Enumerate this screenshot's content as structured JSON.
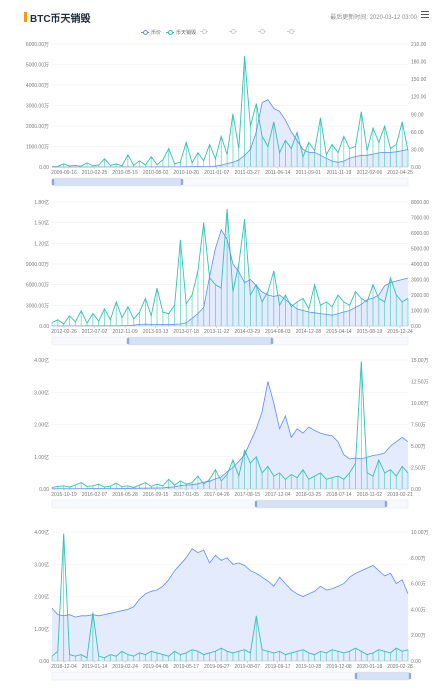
{
  "header": {
    "title": "BTC币天销毁",
    "updated_label": "最后更新时间: 2020-03-12 03:00"
  },
  "legend": [
    {
      "name": "币价",
      "color": "#5b8ff9",
      "active": true
    },
    {
      "name": "币天销毁",
      "color": "#2ec4b6",
      "active": true
    },
    {
      "name": "",
      "color": "#d0d0d0",
      "active": false
    },
    {
      "name": "",
      "color": "#d0d0d0",
      "active": false
    },
    {
      "name": "",
      "color": "#d0d0d0",
      "active": false
    },
    {
      "name": "",
      "color": "#d0d0d0",
      "active": false
    }
  ],
  "colors": {
    "price": "#5b8ff9",
    "destroy": "#2ec4b6",
    "price_fill": "#dfe8fb",
    "accent": "#f29c0f"
  },
  "chart_data": [
    {
      "type": "line",
      "x_ticks": [
        "2009-09-16",
        "2010-02-25",
        "2010-05-15",
        "2010-08-02",
        "2010-10-20",
        "2011-01-07",
        "2011-03-27",
        "2011-06-14",
        "2011-09-01",
        "2011-11-19",
        "2012-02-06",
        "2012-04-25"
      ],
      "y_left_ticks": [
        "0.00",
        "1000.00万",
        "2000.00万",
        "3000.00万",
        "4000.00万",
        "5000.00万",
        "6000.00万"
      ],
      "y_right_ticks": [
        "0.00",
        "30.00",
        "60.00",
        "90.00",
        "120.00",
        "150.00",
        "180.00",
        "210.00"
      ],
      "ylim_left": [
        0,
        6000
      ],
      "ylim_right": [
        0,
        210
      ],
      "series": [
        {
          "name": "币价",
          "axis": "right",
          "values": [
            0,
            0,
            0,
            0,
            0,
            0,
            0,
            0.1,
            0.1,
            0.1,
            0.1,
            0.1,
            0.1,
            0.1,
            0.1,
            0.2,
            0.2,
            0.3,
            0.3,
            0.3,
            0.3,
            0.3,
            0.3,
            0.6,
            0.8,
            1,
            0.9,
            1,
            1.5,
            3,
            6,
            8,
            12,
            20,
            30,
            60,
            110,
            115,
            100,
            95,
            80,
            60,
            45,
            30,
            25,
            25,
            20,
            15,
            10,
            8,
            10,
            15,
            18,
            20,
            20,
            22,
            24,
            25,
            25,
            26,
            28,
            30
          ]
        },
        {
          "name": "币天销毁",
          "axis": "left",
          "values": [
            20,
            30,
            150,
            50,
            80,
            40,
            200,
            60,
            100,
            400,
            80,
            150,
            50,
            600,
            80,
            300,
            100,
            500,
            120,
            350,
            900,
            150,
            250,
            1200,
            200,
            700,
            300,
            1100,
            400,
            1500,
            600,
            2600,
            900,
            5400,
            2000,
            3100,
            1500,
            1000,
            2200,
            700,
            1300,
            900,
            1700,
            500,
            1200,
            800,
            2400,
            600,
            1100,
            700,
            1500,
            900,
            1000,
            2700,
            800,
            1900,
            1200,
            2000,
            900,
            1100,
            2200,
            800
          ]
        }
      ]
    },
    {
      "type": "line",
      "x_ticks": [
        "2012-02-26",
        "2012-07-02",
        "2012-11-09",
        "2013-03-13",
        "2013-07-18",
        "2013-11-22",
        "2014-03-29",
        "2014-08-03",
        "2014-12-08",
        "2015-04-14",
        "2015-08-19",
        "2015-12-24"
      ],
      "y_left_ticks": [
        "0.00",
        "3000.00万",
        "6000.00万",
        "9000.00万",
        "1.20亿",
        "1.50亿",
        "1.80亿"
      ],
      "y_right_ticks": [
        "0.00",
        "1000.00",
        "2000.00",
        "3000.00",
        "4000.00",
        "5000.00",
        "6000.00",
        "7000.00",
        "8000.00"
      ],
      "ylim_left": [
        0,
        18000
      ],
      "ylim_right": [
        0,
        8000
      ],
      "series": [
        {
          "name": "币价",
          "axis": "right",
          "values": [
            5,
            5,
            6,
            6,
            8,
            9,
            10,
            11,
            12,
            13,
            12,
            15,
            20,
            30,
            50,
            100,
            120,
            100,
            90,
            95,
            100,
            110,
            130,
            200,
            500,
            800,
            1200,
            3200,
            5000,
            6200,
            5600,
            4000,
            3500,
            2800,
            3000,
            2600,
            2200,
            2000,
            1900,
            2000,
            1700,
            1400,
            1100,
            1000,
            900,
            850,
            800,
            750,
            700,
            800,
            900,
            1000,
            1200,
            1400,
            1700,
            1800,
            2000,
            2600,
            2800,
            2900,
            3000,
            3100
          ]
        },
        {
          "name": "币天销毁",
          "axis": "left",
          "values": [
            500,
            900,
            300,
            1500,
            600,
            2200,
            400,
            1800,
            700,
            2500,
            900,
            3500,
            1200,
            2800,
            1000,
            2000,
            4000,
            1500,
            5500,
            2000,
            1800,
            3000,
            12500,
            3200,
            4500,
            8000,
            15000,
            7000,
            6000,
            5500,
            17000,
            5000,
            9000,
            15500,
            4500,
            6000,
            3500,
            5000,
            8000,
            3000,
            4500,
            2800,
            3500,
            4000,
            2500,
            6000,
            3000,
            3500,
            2800,
            4500,
            3500,
            3000,
            5000,
            4000,
            3500,
            6000,
            4000,
            3500,
            7000,
            4500,
            3500,
            4000
          ]
        }
      ]
    },
    {
      "type": "line",
      "x_ticks": [
        "2015-10-19",
        "2016-02-07",
        "2016-05-28",
        "2016-09-15",
        "2017-01-05",
        "2017-04-26",
        "2017-08-15",
        "2017-12-04",
        "2018-03-25",
        "2018-07-14",
        "2018-11-02",
        "2019-02-21"
      ],
      "y_left_ticks": [
        "0.00",
        "1.00亿",
        "2.00亿",
        "3.00亿",
        "4.00亿"
      ],
      "y_right_ticks": [
        "0.00",
        "2.50万",
        "5.00万",
        "7.50万",
        "10.00万",
        "12.50万",
        "15.00万"
      ],
      "ylim_left": [
        0,
        4
      ],
      "ylim_right": [
        0,
        15
      ],
      "series": [
        {
          "name": "币价",
          "axis": "right",
          "values": [
            0.03,
            0.04,
            0.04,
            0.04,
            0.05,
            0.05,
            0.06,
            0.07,
            0.07,
            0.06,
            0.06,
            0.06,
            0.07,
            0.08,
            0.09,
            0.1,
            0.1,
            0.12,
            0.12,
            0.13,
            0.2,
            0.25,
            0.4,
            0.45,
            0.5,
            0.6,
            0.8,
            0.9,
            1.2,
            1.4,
            2.0,
            2.5,
            3.2,
            4.0,
            5.5,
            7.0,
            9.0,
            12.5,
            10,
            7.0,
            8.5,
            6.0,
            7.0,
            6.5,
            7.2,
            6.8,
            6.5,
            6.3,
            6.2,
            5.5,
            4.0,
            3.5,
            3.6,
            3.5,
            3.7,
            3.9,
            4.0,
            4.2,
            5.0,
            5.5,
            6.0,
            5.5
          ]
        },
        {
          "name": "币天销毁",
          "axis": "left",
          "values": [
            0.05,
            0.08,
            0.1,
            0.06,
            0.12,
            0.2,
            0.08,
            0.1,
            0.15,
            0.06,
            0.09,
            0.18,
            0.07,
            0.1,
            0.05,
            0.12,
            0.2,
            0.08,
            0.15,
            0.1,
            0.3,
            0.12,
            0.25,
            0.15,
            0.2,
            0.4,
            0.15,
            0.3,
            0.6,
            0.25,
            0.45,
            0.9,
            0.4,
            1.2,
            0.8,
            1.0,
            0.5,
            0.7,
            0.4,
            0.5,
            0.3,
            0.45,
            0.35,
            0.6,
            0.3,
            0.4,
            0.5,
            0.3,
            0.35,
            0.4,
            0.3,
            0.5,
            0.8,
            3.95,
            0.5,
            0.4,
            0.9,
            0.5,
            0.6,
            0.4,
            0.7,
            0.5
          ]
        }
      ]
    },
    {
      "type": "line",
      "x_ticks": [
        "2018-12-04",
        "2019-01-14",
        "2019-02-24",
        "2019-04-06",
        "2019-05-17",
        "2019-06-27",
        "2019-08-07",
        "2019-09-17",
        "2019-10-28",
        "2019-12-08",
        "2020-01-18",
        "2020-02-28"
      ],
      "y_left_ticks": [
        "0.00",
        "1.00亿",
        "2.00亿",
        "3.00亿",
        "4.00亿"
      ],
      "y_right_ticks": [
        "0.00",
        "2.00万",
        "4.00万",
        "6.00万",
        "8.00万",
        "10.00万"
      ],
      "ylim_left": [
        0,
        4
      ],
      "ylim_right": [
        0,
        10
      ],
      "series": [
        {
          "name": "币价",
          "axis": "right",
          "values": [
            4.1,
            3.6,
            3.5,
            3.6,
            3.4,
            3.5,
            3.5,
            3.6,
            3.5,
            3.6,
            3.7,
            3.8,
            3.9,
            4.0,
            4.2,
            4.8,
            5.2,
            5.4,
            5.5,
            5.8,
            6.3,
            7.0,
            7.5,
            8.0,
            8.7,
            8.4,
            8.6,
            7.6,
            8.2,
            7.8,
            8.0,
            7.5,
            7.6,
            7.4,
            7.0,
            6.8,
            6.5,
            6.2,
            5.8,
            6.5,
            6.0,
            5.5,
            5.2,
            5.0,
            5.2,
            5.4,
            5.8,
            5.5,
            5.6,
            5.8,
            6.0,
            6.5,
            6.8,
            7.0,
            7.2,
            7.4,
            7.0,
            6.6,
            6.8,
            6.0,
            6.3,
            5.2
          ]
        },
        {
          "name": "币天销毁",
          "axis": "left",
          "values": [
            0.15,
            0.3,
            3.95,
            0.2,
            0.15,
            0.2,
            0.1,
            1.5,
            0.15,
            0.1,
            0.2,
            0.15,
            0.3,
            0.2,
            0.15,
            0.25,
            0.2,
            0.3,
            0.25,
            0.2,
            0.15,
            0.3,
            0.2,
            0.25,
            0.35,
            0.3,
            0.2,
            0.25,
            0.3,
            0.4,
            0.3,
            0.25,
            0.3,
            0.35,
            0.25,
            1.4,
            0.35,
            0.3,
            0.25,
            0.3,
            0.2,
            0.25,
            0.3,
            0.35,
            0.25,
            0.2,
            0.3,
            0.25,
            0.35,
            0.3,
            0.25,
            0.3,
            0.4,
            0.3,
            0.2,
            0.25,
            0.35,
            0.3,
            0.25,
            0.4,
            0.3,
            0.35
          ]
        }
      ]
    }
  ]
}
